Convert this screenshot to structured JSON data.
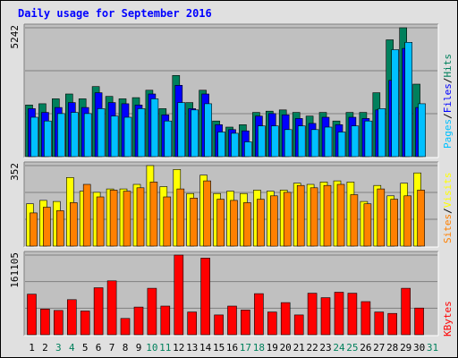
{
  "colors": {
    "hits": "#00805c",
    "files": "#0000ff",
    "pages": "#00c0ff",
    "visits": "#ffff00",
    "sites": "#ff8000",
    "kbytes": "#ff0000",
    "panel_bg": "#c0c0c0",
    "outer_bg": "#e0e0e0",
    "title": "#0000ff",
    "weekend_day": "#00805c",
    "weekday_day": "#000000"
  },
  "chart_data": {
    "title": "Daily usage for September 2016",
    "type": "bar",
    "x": [
      "1",
      "2",
      "3",
      "4",
      "5",
      "6",
      "7",
      "8",
      "9",
      "10",
      "11",
      "12",
      "13",
      "14",
      "15",
      "16",
      "17",
      "18",
      "19",
      "20",
      "21",
      "22",
      "23",
      "24",
      "25",
      "26",
      "27",
      "28",
      "29",
      "30",
      "31"
    ],
    "weekend_days": [
      "3",
      "4",
      "10",
      "11",
      "17",
      "18",
      "24",
      "25",
      "31"
    ],
    "panels": [
      {
        "id": "pages-files-hits",
        "ymax_label": "5242",
        "ymax": 5242,
        "legend": [
          {
            "text": "Pages",
            "color_key": "pages"
          },
          {
            "text": "/",
            "color_key": "sep"
          },
          {
            "text": "Files",
            "color_key": "files"
          },
          {
            "text": "/",
            "color_key": "sep"
          },
          {
            "text": "Hits",
            "color_key": "hits"
          }
        ],
        "series": [
          {
            "name": "Hits",
            "color_key": "hits",
            "values": [
              2100,
              2150,
              2350,
              2550,
              2350,
              2850,
              2450,
              2350,
              2400,
              2700,
              1950,
              3300,
              2200,
              2700,
              1450,
              1200,
              1300,
              1800,
              1850,
              1900,
              1800,
              1650,
              1800,
              1450,
              1800,
              1800,
              2600,
              4750,
              5242,
              2950,
              null
            ]
          },
          {
            "name": "Files",
            "color_key": "files",
            "values": [
              1950,
              1800,
              2000,
              2200,
              2000,
              2600,
              2200,
              2150,
              2100,
              2550,
              1700,
              2900,
              1950,
              2550,
              1300,
              1100,
              1050,
              1650,
              1750,
              1700,
              1550,
              1350,
              1600,
              1300,
              1600,
              1550,
              1900,
              3100,
              4400,
              2000,
              null
            ]
          },
          {
            "name": "Pages",
            "color_key": "pages",
            "values": [
              1600,
              1450,
              1750,
              1800,
              1750,
              1950,
              1650,
              1600,
              1950,
              2350,
              1450,
              2200,
              1900,
              2150,
              1000,
              950,
              600,
              1250,
              1250,
              1100,
              1250,
              1100,
              1200,
              1000,
              1250,
              1450,
              1950,
              4350,
              4650,
              2150,
              null
            ]
          }
        ]
      },
      {
        "id": "sites-visits",
        "ymax_label": "352",
        "ymax": 352,
        "legend": [
          {
            "text": "Sites",
            "color_key": "sites"
          },
          {
            "text": "/",
            "color_key": "sep"
          },
          {
            "text": "Visits",
            "color_key": "visits"
          }
        ],
        "series": [
          {
            "name": "Visits",
            "color_key": "visits",
            "values": [
              185,
              200,
              195,
              300,
              240,
              235,
              250,
              250,
              270,
              352,
              260,
              335,
              230,
              310,
              230,
              240,
              230,
              245,
              240,
              245,
              275,
              270,
              280,
              285,
              280,
              195,
              265,
              220,
              275,
              320,
              0
            ]
          },
          {
            "name": "Sites",
            "color_key": "sites",
            "values": [
              145,
              170,
              155,
              190,
              270,
              215,
              245,
              240,
              255,
              280,
              215,
              250,
              210,
              285,
              205,
              200,
              190,
              205,
              220,
              235,
              265,
              255,
              265,
              270,
              225,
              185,
              250,
              205,
              220,
              245,
              0
            ]
          }
        ]
      },
      {
        "id": "kbytes",
        "ymax_label": "161105",
        "ymax": 161105,
        "legend": [
          {
            "text": "KBytes",
            "color_key": "kbytes"
          }
        ],
        "series": [
          {
            "name": "KBytes",
            "color_key": "kbytes",
            "values": [
              82000,
              52000,
              49000,
              71000,
              48000,
              95000,
              109000,
              33000,
              56000,
              94000,
              58000,
              161105,
              46000,
              155000,
              40000,
              58000,
              50000,
              83000,
              46000,
              65000,
              40000,
              84000,
              75000,
              86000,
              84000,
              67000,
              46000,
              43000,
              94000,
              54000,
              0
            ]
          }
        ]
      }
    ]
  }
}
